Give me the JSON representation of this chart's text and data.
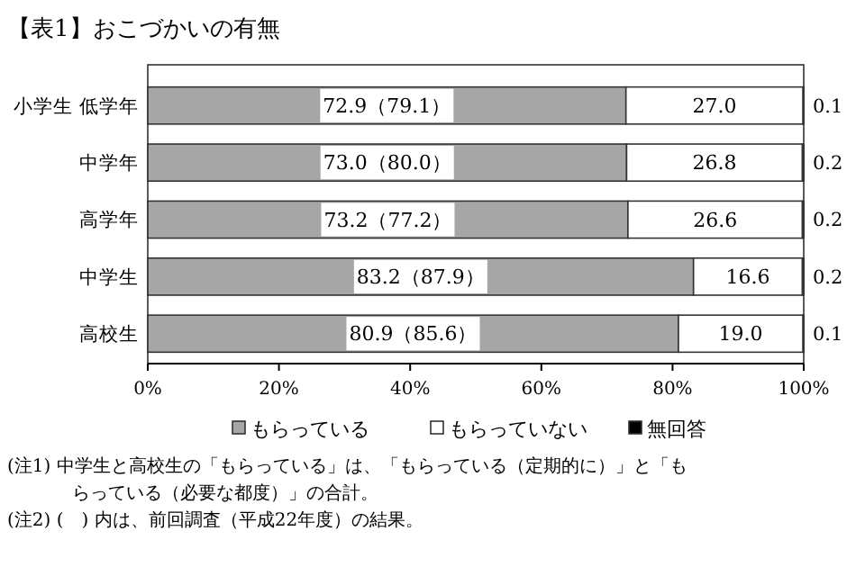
{
  "chart_data": {
    "type": "bar",
    "orientation": "horizontal",
    "stacked": true,
    "title": "【表1】おこづかいの有無",
    "categories": [
      "小学生 低学年",
      "中学年",
      "高学年",
      "中学生",
      "高校生"
    ],
    "series": [
      {
        "name": "もらっている",
        "color": "#a6a6a6",
        "values": [
          72.9,
          73.0,
          73.2,
          83.2,
          80.9
        ],
        "value_labels": [
          "72.9（79.1）",
          "73.0（80.0）",
          "73.2（77.2）",
          "83.2（87.9）",
          "80.9（85.6）"
        ]
      },
      {
        "name": "もらっていない",
        "color": "#ffffff",
        "values": [
          27.0,
          26.8,
          26.6,
          16.6,
          19.0
        ],
        "value_labels": [
          "27.0",
          "26.8",
          "26.6",
          "16.6",
          "19.0"
        ]
      },
      {
        "name": "無回答",
        "color": "#000000",
        "values": [
          0.1,
          0.2,
          0.2,
          0.2,
          0.1
        ],
        "value_labels": [
          "0.1",
          "0.2",
          "0.2",
          "0.2",
          "0.1"
        ]
      }
    ],
    "xlim": [
      0,
      100
    ],
    "xticks": [
      {
        "value": 0,
        "label": "0%"
      },
      {
        "value": 20,
        "label": "20%"
      },
      {
        "value": 40,
        "label": "40%"
      },
      {
        "value": 60,
        "label": "60%"
      },
      {
        "value": 80,
        "label": "80%"
      },
      {
        "value": 100,
        "label": "100%"
      }
    ],
    "legend": "bottom",
    "grid": false,
    "annotations": [
      "(注1) 中学生と高校生の「もらっている」は、「もらっている（定期的に）」と「もらっている（必要な都度）」の合計。",
      "(注2) (　) 内は、前回調査（平成22年度）の結果。"
    ]
  }
}
